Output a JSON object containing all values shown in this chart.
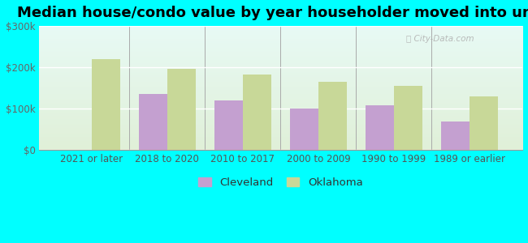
{
  "title": "Median house/condo value by year householder moved into unit",
  "categories": [
    "2021 or later",
    "2018 to 2020",
    "2010 to 2017",
    "2000 to 2009",
    "1990 to 1999",
    "1989 or earlier"
  ],
  "cleveland_values": [
    null,
    135000,
    120000,
    100000,
    107000,
    68000
  ],
  "oklahoma_values": [
    220000,
    197000,
    183000,
    165000,
    155000,
    130000
  ],
  "cleveland_color": "#c4a0d0",
  "oklahoma_color": "#c8d898",
  "grad_top": "#e8faf5",
  "grad_bottom": "#e0f0d8",
  "outer_bg": "#00ffff",
  "ylim": [
    0,
    300000
  ],
  "yticks": [
    0,
    100000,
    200000,
    300000
  ],
  "ytick_labels": [
    "$0",
    "$100k",
    "$200k",
    "$300k"
  ],
  "bar_width": 0.38,
  "legend_cleveland": "Cleveland",
  "legend_oklahoma": "Oklahoma",
  "title_fontsize": 13,
  "axis_fontsize": 8.5,
  "legend_fontsize": 9.5
}
